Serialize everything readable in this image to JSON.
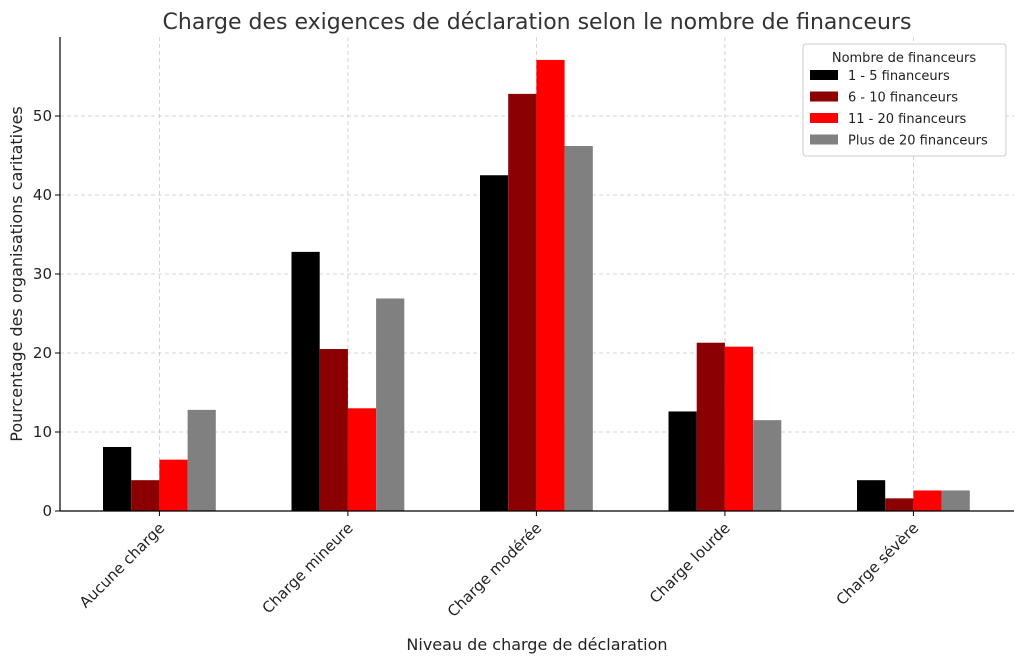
{
  "chart_data": {
    "type": "bar",
    "title": "Charge des exigences de déclaration selon le nombre de financeurs",
    "xlabel": "Niveau de charge de déclaration",
    "ylabel": "Pourcentage des organisations caritatives",
    "ylim": [
      0,
      60
    ],
    "yticks": [
      0,
      10,
      20,
      30,
      40,
      50
    ],
    "grid": true,
    "legend": {
      "title": "Nombre de financeurs",
      "placement": "top-right"
    },
    "categories": [
      "Aucune charge",
      "Charge mineure",
      "Charge modérée",
      "Charge lourde",
      "Charge sévère"
    ],
    "series": [
      {
        "name": "1 - 5 financeurs",
        "color": "#000000",
        "values": [
          8.1,
          32.8,
          42.5,
          12.6,
          3.9
        ]
      },
      {
        "name": "6 - 10 financeurs",
        "color": "#8b0000",
        "values": [
          3.9,
          20.5,
          52.8,
          21.3,
          1.6
        ]
      },
      {
        "name": "11 - 20 financeurs",
        "color": "#ff0000",
        "values": [
          6.5,
          13.0,
          57.1,
          20.8,
          2.6
        ]
      },
      {
        "name": "Plus de 20 financeurs",
        "color": "#808080",
        "values": [
          12.8,
          26.9,
          46.2,
          11.5,
          2.6
        ]
      }
    ]
  }
}
